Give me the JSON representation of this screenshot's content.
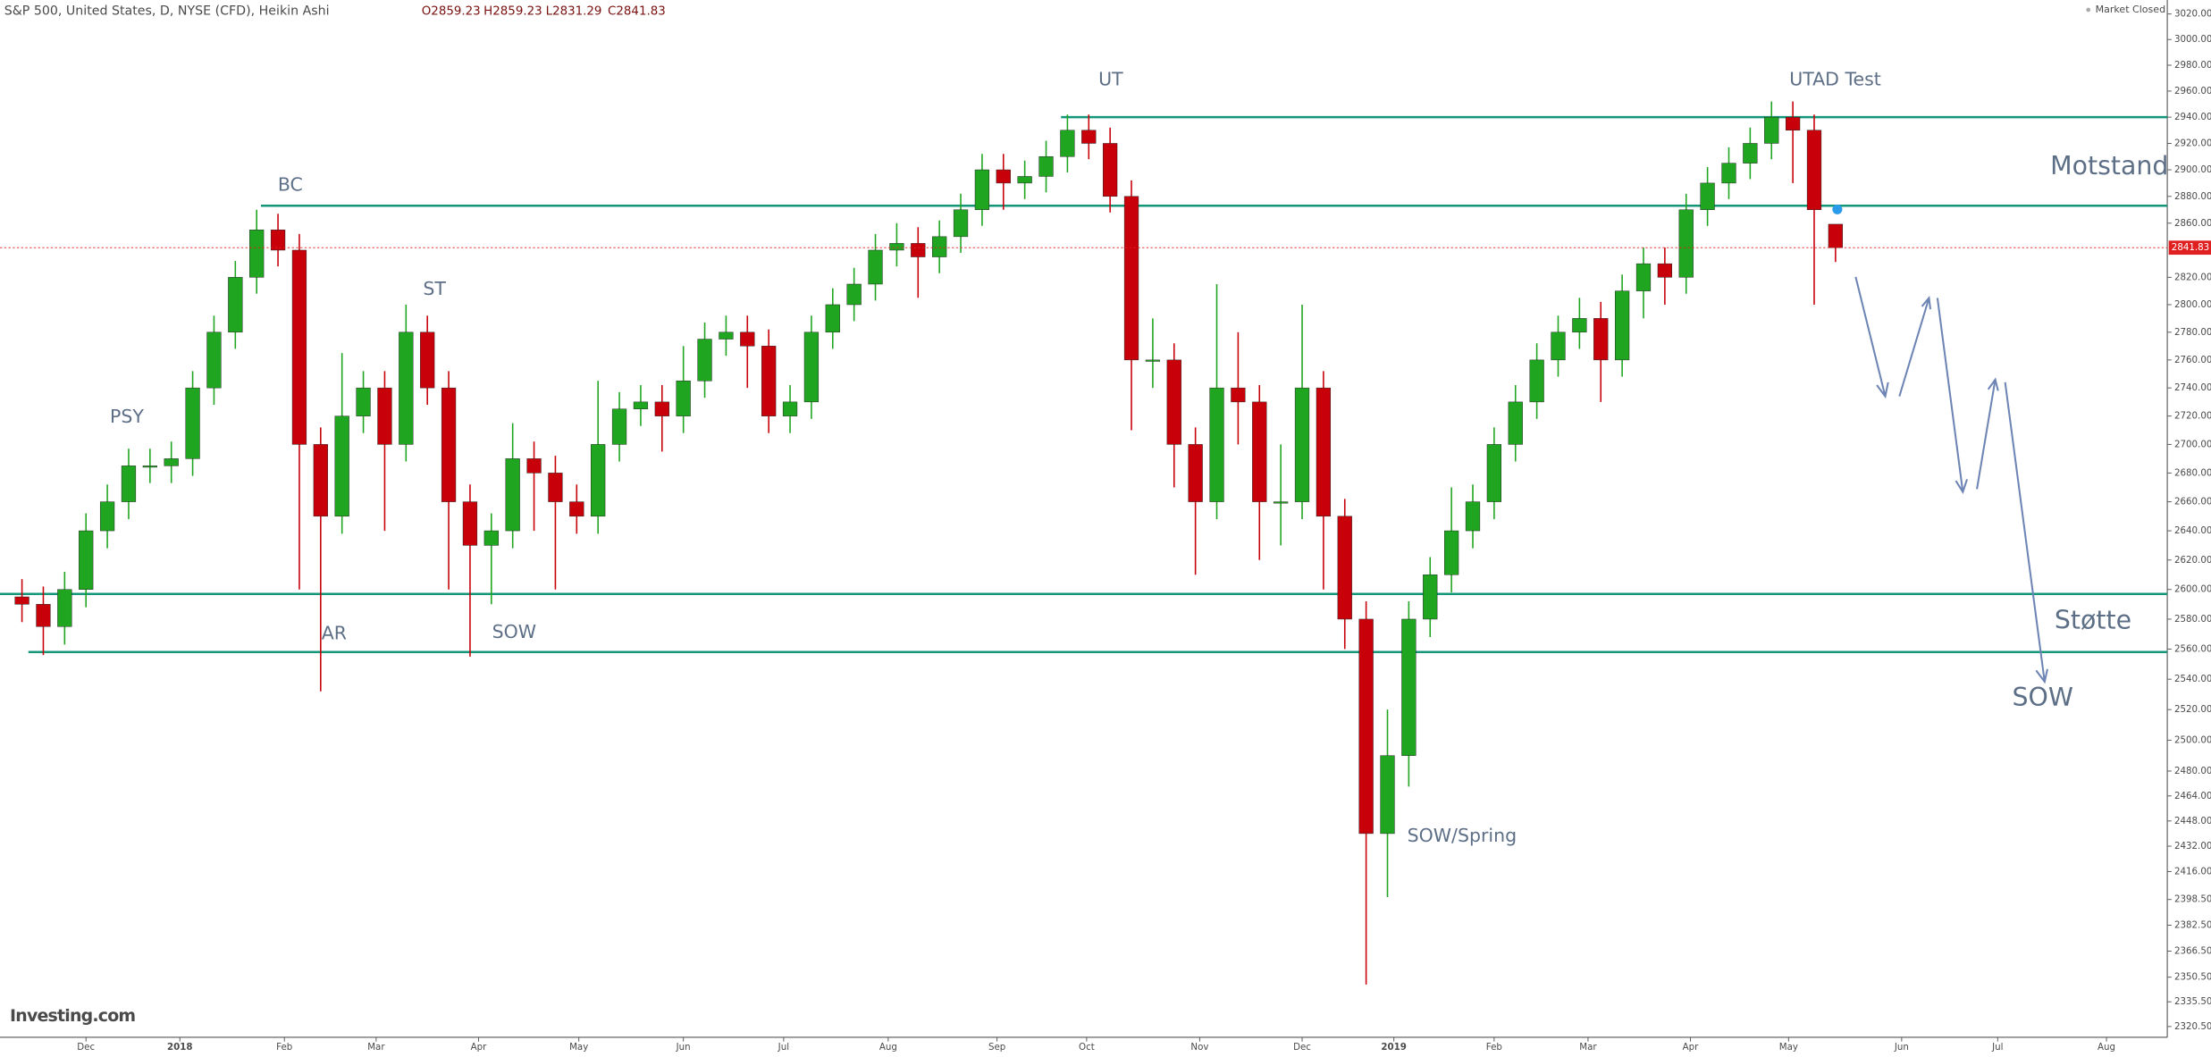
{
  "chart_data": {
    "type": "candlestick",
    "title": "S&P 500, United States, D, NYSE (CFD), Heikin Ashi",
    "header_values": [
      "O2859.23",
      "H2859.23",
      "L2831.29",
      "C2841.83"
    ],
    "status": "Market Closed",
    "brand": "Investing.com",
    "up_color": "#1fa51f",
    "down_color": "#c8000a",
    "level_color": "#14967a",
    "log_scale": true,
    "xlim": [
      -4.03,
      97.55
    ],
    "xticks": [
      {
        "value": 0,
        "label": "Dec"
      },
      {
        "value": 4.4,
        "label": "2018"
      },
      {
        "value": 9.3,
        "label": "Feb"
      },
      {
        "value": 13.6,
        "label": "Mar"
      },
      {
        "value": 18.4,
        "label": "Apr"
      },
      {
        "value": 23.1,
        "label": "May"
      },
      {
        "value": 28,
        "label": "Jun"
      },
      {
        "value": 32.7,
        "label": "Jul"
      },
      {
        "value": 37.6,
        "label": "Aug"
      },
      {
        "value": 42.7,
        "label": "Sep"
      },
      {
        "value": 46.9,
        "label": "Oct"
      },
      {
        "value": 52.2,
        "label": "Nov"
      },
      {
        "value": 57,
        "label": "Dec"
      },
      {
        "value": 61.3,
        "label": "2019"
      },
      {
        "value": 66,
        "label": "Feb"
      },
      {
        "value": 70.4,
        "label": "Mar"
      },
      {
        "value": 75.2,
        "label": "Apr"
      },
      {
        "value": 79.8,
        "label": "May"
      },
      {
        "value": 85.1,
        "label": "Jun"
      },
      {
        "value": 89.6,
        "label": "Jul"
      },
      {
        "value": 94.7,
        "label": "Aug"
      }
    ],
    "ylim": [
      2314,
      3031
    ],
    "yticks": [
      {
        "value": 3020,
        "label": "3020.00"
      },
      {
        "value": 3000,
        "label": "3000.00"
      },
      {
        "value": 2980,
        "label": "2980.00"
      },
      {
        "value": 2960,
        "label": "2960.00"
      },
      {
        "value": 2940,
        "label": "2940.00"
      },
      {
        "value": 2920,
        "label": "2920.00"
      },
      {
        "value": 2900,
        "label": "2900.00"
      },
      {
        "value": 2880,
        "label": "2880.00"
      },
      {
        "value": 2860,
        "label": "2860.00"
      },
      {
        "value": 2820,
        "label": "2820.00"
      },
      {
        "value": 2800,
        "label": "2800.00"
      },
      {
        "value": 2780,
        "label": "2780.00"
      },
      {
        "value": 2760,
        "label": "2760.00"
      },
      {
        "value": 2740,
        "label": "2740.00"
      },
      {
        "value": 2720,
        "label": "2720.00"
      },
      {
        "value": 2700,
        "label": "2700.00"
      },
      {
        "value": 2680,
        "label": "2680.00"
      },
      {
        "value": 2660,
        "label": "2660.00"
      },
      {
        "value": 2640,
        "label": "2640.00"
      },
      {
        "value": 2620,
        "label": "2620.00"
      },
      {
        "value": 2600,
        "label": "2600.00"
      },
      {
        "value": 2580,
        "label": "2580.00"
      },
      {
        "value": 2560,
        "label": "2560.00"
      },
      {
        "value": 2540,
        "label": "2540.00"
      },
      {
        "value": 2520,
        "label": "2520.00"
      },
      {
        "value": 2500,
        "label": "2500.00"
      },
      {
        "value": 2480,
        "label": "2480.00"
      },
      {
        "value": 2464,
        "label": "2464.00"
      },
      {
        "value": 2448,
        "label": "2448.00"
      },
      {
        "value": 2432,
        "label": "2432.00"
      },
      {
        "value": 2416,
        "label": "2416.00"
      },
      {
        "value": 2398.5,
        "label": "2398.50"
      },
      {
        "value": 2382.5,
        "label": "2382.50"
      },
      {
        "value": 2366.5,
        "label": "2366.50"
      },
      {
        "value": 2350.5,
        "label": "2350.50"
      },
      {
        "value": 2335.5,
        "label": "2335.50"
      },
      {
        "value": 2320.5,
        "label": "2320.50"
      }
    ],
    "x": [
      -3,
      -2,
      -1,
      0,
      1,
      2,
      3,
      4,
      5,
      6,
      7,
      8,
      9,
      10,
      11,
      12,
      13,
      14,
      15,
      16,
      17,
      18,
      19,
      20,
      21,
      22,
      23,
      24,
      25,
      26,
      27,
      28,
      29,
      30,
      31,
      32,
      33,
      34,
      35,
      36,
      37,
      38,
      39,
      40,
      41,
      42,
      43,
      44,
      45,
      46,
      47,
      48,
      49,
      50,
      51,
      52,
      53,
      54,
      55,
      56,
      57,
      58,
      59,
      60,
      61,
      62,
      63,
      64,
      65,
      66,
      67,
      68,
      69,
      70,
      71,
      72,
      73,
      74,
      75,
      76,
      77,
      78,
      79,
      80,
      81,
      82
    ],
    "open": [
      2595,
      2590,
      2575,
      2600,
      2640,
      2660,
      2685,
      2685,
      2690,
      2740,
      2780,
      2820,
      2855,
      2840,
      2700,
      2650,
      2720,
      2740,
      2700,
      2780,
      2740,
      2660,
      2630,
      2640,
      2690,
      2680,
      2660,
      2650,
      2700,
      2725,
      2730,
      2720,
      2745,
      2775,
      2780,
      2770,
      2720,
      2730,
      2780,
      2800,
      2815,
      2840,
      2845,
      2835,
      2850,
      2870,
      2900,
      2890,
      2895,
      2910,
      2930,
      2920,
      2880,
      2760,
      2760,
      2700,
      2660,
      2740,
      2730,
      2660,
      2660,
      2740,
      2650,
      2580,
      2440,
      2490,
      2580,
      2610,
      2640,
      2660,
      2700,
      2730,
      2760,
      2780,
      2790,
      2760,
      2810,
      2830,
      2820,
      2870,
      2890,
      2905,
      2920,
      2940,
      2930,
      2859.23
    ],
    "high": [
      2607,
      2602,
      2612,
      2652,
      2672,
      2697,
      2697,
      2702,
      2752,
      2792,
      2832,
      2870,
      2867,
      2852,
      2712,
      2765,
      2752,
      2752,
      2800,
      2792,
      2752,
      2672,
      2652,
      2715,
      2702,
      2692,
      2672,
      2745,
      2737,
      2742,
      2742,
      2770,
      2787,
      2792,
      2792,
      2782,
      2742,
      2792,
      2812,
      2827,
      2852,
      2860,
      2857,
      2862,
      2882,
      2912,
      2912,
      2907,
      2922,
      2942,
      2942,
      2932,
      2892,
      2790,
      2772,
      2712,
      2815,
      2780,
      2742,
      2700,
      2800,
      2752,
      2662,
      2592,
      2520,
      2592,
      2622,
      2670,
      2672,
      2712,
      2742,
      2772,
      2792,
      2805,
      2802,
      2822,
      2842,
      2842,
      2882,
      2902,
      2917,
      2932,
      2952,
      2952,
      2942,
      2859.23
    ],
    "low": [
      2578,
      2556,
      2563,
      2588,
      2628,
      2648,
      2673,
      2673,
      2678,
      2728,
      2768,
      2808,
      2828,
      2600,
      2532,
      2638,
      2708,
      2640,
      2688,
      2728,
      2600,
      2555,
      2590,
      2628,
      2640,
      2600,
      2638,
      2638,
      2688,
      2713,
      2695,
      2708,
      2733,
      2763,
      2740,
      2708,
      2708,
      2718,
      2768,
      2788,
      2803,
      2828,
      2805,
      2823,
      2838,
      2858,
      2870,
      2878,
      2883,
      2898,
      2908,
      2868,
      2710,
      2740,
      2670,
      2610,
      2648,
      2700,
      2620,
      2630,
      2648,
      2600,
      2560,
      2346,
      2400,
      2470,
      2568,
      2598,
      2628,
      2648,
      2688,
      2718,
      2748,
      2768,
      2730,
      2748,
      2790,
      2800,
      2808,
      2858,
      2878,
      2893,
      2908,
      2890,
      2800,
      2831.29
    ],
    "close": [
      2590,
      2575,
      2600,
      2640,
      2660,
      2685,
      2685,
      2690,
      2740,
      2780,
      2820,
      2855,
      2840,
      2700,
      2650,
      2720,
      2740,
      2700,
      2780,
      2740,
      2660,
      2630,
      2640,
      2690,
      2680,
      2660,
      2650,
      2700,
      2725,
      2730,
      2720,
      2745,
      2775,
      2780,
      2770,
      2720,
      2730,
      2780,
      2800,
      2815,
      2840,
      2845,
      2835,
      2850,
      2870,
      2900,
      2890,
      2895,
      2910,
      2930,
      2920,
      2880,
      2760,
      2760,
      2700,
      2660,
      2740,
      2730,
      2660,
      2660,
      2740,
      2650,
      2580,
      2440,
      2490,
      2580,
      2610,
      2640,
      2660,
      2700,
      2730,
      2760,
      2780,
      2790,
      2760,
      2810,
      2830,
      2820,
      2870,
      2890,
      2905,
      2920,
      2940,
      2930,
      2870,
      2841.83
    ],
    "levels": [
      {
        "value": 2940,
        "from": 45.7
      },
      {
        "value": 2873,
        "from": 8.2
      },
      {
        "value": 2597,
        "from": -4.03
      },
      {
        "value": 2558,
        "from": -2.7
      }
    ],
    "annotations": [
      "PSY",
      "BC",
      "AR",
      "ST",
      "SOW",
      "UT",
      "SOW/Spring",
      "UTAD Test",
      "Motstand",
      "Støtte",
      "SOW"
    ]
  }
}
